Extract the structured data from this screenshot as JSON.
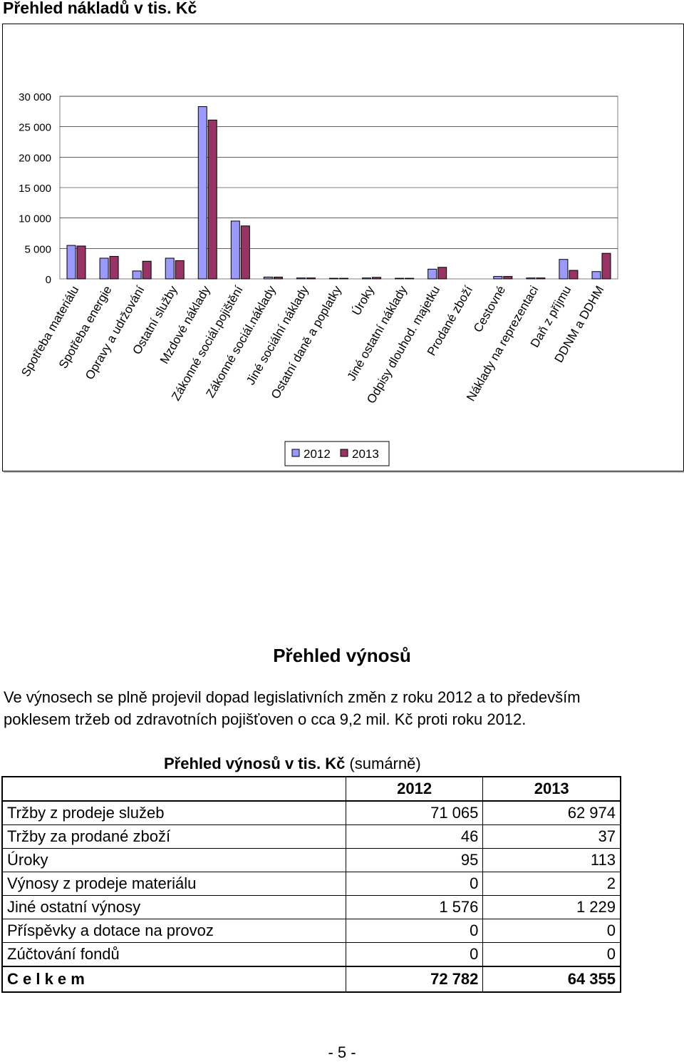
{
  "heading": "Přehled nákladů v tis. Kč",
  "chart_data": {
    "type": "bar",
    "categories": [
      "Spotřeba materiálu",
      "Spotřeba energie",
      "Opravy a udržování",
      "Ostatní služby",
      "Mzdové náklady",
      "Zákonné sociál.pojištění",
      "Zákonné sociál.náklady",
      "Jiné sociální náklady",
      "Ostatní daně a poplatky",
      "Úroky",
      "Jiné ostatní náklady",
      "Odpisy dlouhod. majetku",
      "Prodané zboží",
      "Cestovné",
      "Náklady na reprezentaci",
      "Daň z příjmu",
      "DDNM a DDHM"
    ],
    "series": [
      {
        "name": "2012",
        "color": "#9999ff",
        "values": [
          5500,
          3400,
          1300,
          3400,
          28300,
          9500,
          300,
          150,
          100,
          150,
          100,
          1600,
          0,
          400,
          150,
          3200,
          1200
        ]
      },
      {
        "name": "2013",
        "color": "#993366",
        "values": [
          5400,
          3700,
          2900,
          3000,
          26100,
          8700,
          300,
          150,
          100,
          250,
          100,
          1900,
          0,
          400,
          150,
          1400,
          4200
        ]
      }
    ],
    "ylim": [
      0,
      30000
    ],
    "yticks": [
      "0",
      "5 000",
      "10 000",
      "15 000",
      "20 000",
      "25 000",
      "30 000"
    ],
    "legend_position": "bottom"
  },
  "section_title": "Přehled výnosů",
  "paragraph": {
    "line1": "Ve výnosech se plně projevil dopad legislativních změn z roku 2012 a to především",
    "line2": "poklesem tržeb od zdravotních pojišťoven o cca 9,2 mil. Kč proti roku 2012."
  },
  "table_caption": {
    "bold": "Přehled výnosů v tis. Kč",
    "normal": " (sumárně)"
  },
  "table": {
    "headers": [
      "",
      "2012",
      "2013"
    ],
    "rows": [
      [
        "Tržby z prodeje služeb",
        "71 065",
        "62 974"
      ],
      [
        "Tržby za prodané zboží",
        "46",
        "37"
      ],
      [
        "Úroky",
        "95",
        "113"
      ],
      [
        "Výnosy z prodeje materiálu",
        "0",
        "2"
      ],
      [
        "Jiné ostatní výnosy",
        "1 576",
        "1 229"
      ],
      [
        "Příspěvky a dotace na provoz",
        "0",
        "0"
      ],
      [
        "Zúčtování fondů",
        "0",
        "0"
      ]
    ],
    "total": [
      "C e l k e m",
      "72 782",
      "64 355"
    ]
  },
  "page_number": "- 5 -"
}
